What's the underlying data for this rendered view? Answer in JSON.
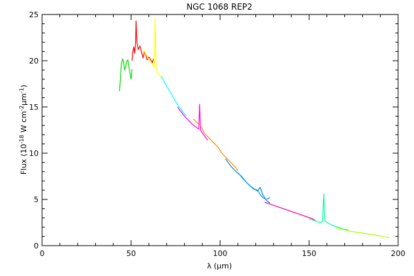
{
  "chart_data": {
    "type": "line",
    "title": "NGC 1068 REP2",
    "xlabel": "λ (μm)",
    "ylabel": "Flux (10-18 W cm-2 μm-1)",
    "xlim": [
      0,
      200
    ],
    "ylim": [
      0,
      25
    ],
    "xticks": [
      0,
      50,
      100,
      150,
      200
    ],
    "yticks": [
      0,
      5,
      10,
      15,
      20,
      25
    ],
    "grid": false,
    "series": [
      {
        "color": "#00dd00",
        "x": [
          43.5,
          44.0,
          44.5,
          45.2,
          45.8,
          46.4,
          47.0,
          47.6,
          48.2,
          48.8,
          49.4,
          50.0,
          50.5
        ],
        "y": [
          16.7,
          18.0,
          19.6,
          20.2,
          19.8,
          19.0,
          19.4,
          19.9,
          20.1,
          19.3,
          18.6,
          18.0,
          19.1
        ]
      },
      {
        "color": "#ff0000",
        "x": [
          50.5,
          51.0,
          51.5,
          52.0,
          52.5,
          52.8,
          53.3,
          54.0,
          55.0,
          56.0,
          56.8,
          57.5,
          58.3,
          59.0,
          60.0,
          61.0,
          62.0,
          62.5
        ],
        "y": [
          20.0,
          21.0,
          21.5,
          20.8,
          21.8,
          24.3,
          22.0,
          21.2,
          21.6,
          20.8,
          20.3,
          21.0,
          20.6,
          20.1,
          20.4,
          20.1,
          19.8,
          20.2
        ]
      },
      {
        "color": "#ffff00",
        "x": [
          57.0,
          58.0,
          59.0,
          60.0,
          61.0,
          62.0,
          63.0,
          63.5,
          64.0,
          64.5,
          65.5,
          67.0
        ],
        "y": [
          21.2,
          20.8,
          20.5,
          20.1,
          19.8,
          19.6,
          19.3,
          24.6,
          19.2,
          18.8,
          18.5,
          18.2
        ]
      },
      {
        "color": "#00ffff",
        "x": [
          67.0,
          69.0,
          71.0,
          73.0,
          75.0,
          77.0,
          79.0,
          81.0
        ],
        "y": [
          18.3,
          17.6,
          16.9,
          16.3,
          15.6,
          15.0,
          14.5,
          14.0
        ]
      },
      {
        "color": "#ff00ff",
        "x": [
          76.0,
          78.0,
          80.0,
          82.0,
          84.0,
          86.0,
          88.0,
          88.5,
          89.0,
          90.0,
          91.5,
          93.0
        ],
        "y": [
          15.0,
          14.5,
          14.0,
          13.6,
          13.2,
          12.9,
          12.6,
          15.3,
          12.5,
          12.2,
          11.8,
          11.4
        ]
      },
      {
        "color": "#ff8800",
        "x": [
          85.0,
          87.0,
          89.0,
          91.0,
          93.0,
          95.0,
          97.0,
          99.0,
          101.0,
          103.0,
          105.0,
          107.0,
          109.0,
          110.0
        ],
        "y": [
          13.7,
          13.3,
          13.0,
          12.2,
          11.8,
          11.4,
          11.0,
          10.6,
          10.0,
          9.6,
          9.2,
          8.8,
          8.4,
          8.1
        ]
      },
      {
        "color": "#0088cc",
        "x": [
          103.0,
          106.0,
          109.0,
          112.0,
          115.0,
          118.0,
          121.0,
          122.5,
          124.0,
          126.0,
          128.0
        ],
        "y": [
          9.4,
          8.6,
          8.0,
          7.5,
          6.8,
          6.3,
          5.9,
          6.3,
          5.5,
          4.9,
          4.6
        ]
      },
      {
        "color": "#0099ff",
        "x": [
          110.0,
          113.0,
          116.0,
          119.0,
          121.0,
          122.5,
          124.0,
          126.0,
          128.0
        ],
        "y": [
          7.9,
          7.2,
          6.6,
          6.1,
          6.0,
          5.5,
          5.2,
          5.0,
          5.2
        ]
      },
      {
        "color": "#ff0099",
        "x": [
          125.0,
          128.0,
          131.0,
          134.0,
          137.0,
          140.0,
          143.0,
          146.0,
          149.0,
          152.0,
          153.5
        ],
        "y": [
          4.7,
          4.5,
          4.3,
          4.1,
          3.9,
          3.7,
          3.5,
          3.3,
          3.1,
          2.9,
          2.7
        ]
      },
      {
        "color": "#00ff99",
        "x": [
          150.0,
          153.0,
          156.0,
          157.5,
          158.0,
          158.3,
          158.8,
          160.0,
          163.0,
          166.0,
          169.0,
          172.0
        ],
        "y": [
          2.9,
          2.7,
          2.5,
          2.6,
          4.6,
          5.6,
          2.7,
          2.5,
          2.2,
          2.0,
          1.8,
          1.7
        ]
      },
      {
        "color": "#aaff00",
        "x": [
          165.0,
          170.0,
          175.0,
          180.0,
          185.0,
          190.0,
          195.0
        ],
        "y": [
          1.95,
          1.7,
          1.5,
          1.35,
          1.2,
          1.05,
          0.85
        ]
      }
    ]
  }
}
